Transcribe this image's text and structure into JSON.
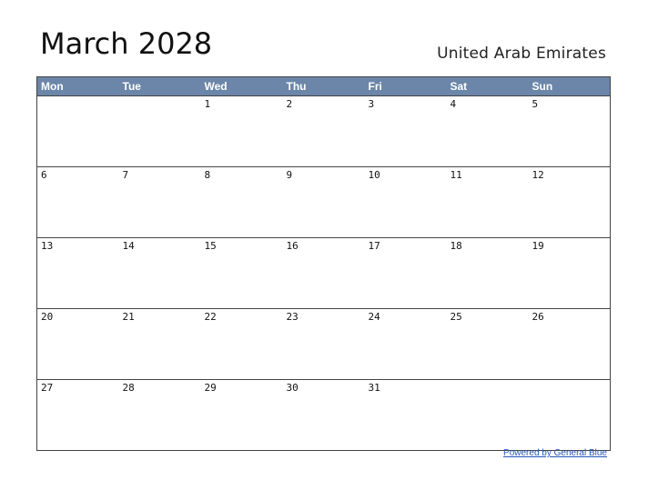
{
  "header": {
    "title": "March 2028",
    "country": "United Arab Emirates"
  },
  "calendar": {
    "weekdays": [
      "Mon",
      "Tue",
      "Wed",
      "Thu",
      "Fri",
      "Sat",
      "Sun"
    ],
    "weeks": [
      [
        "",
        "",
        "1",
        "2",
        "3",
        "4",
        "5"
      ],
      [
        "6",
        "7",
        "8",
        "9",
        "10",
        "11",
        "12"
      ],
      [
        "13",
        "14",
        "15",
        "16",
        "17",
        "18",
        "19"
      ],
      [
        "20",
        "21",
        "22",
        "23",
        "24",
        "25",
        "26"
      ],
      [
        "27",
        "28",
        "29",
        "30",
        "31",
        "",
        ""
      ]
    ]
  },
  "footer": {
    "link_text": "Powered by General Blue"
  },
  "colors": {
    "header_bar": "#6b86a8",
    "link": "#2457b8"
  }
}
